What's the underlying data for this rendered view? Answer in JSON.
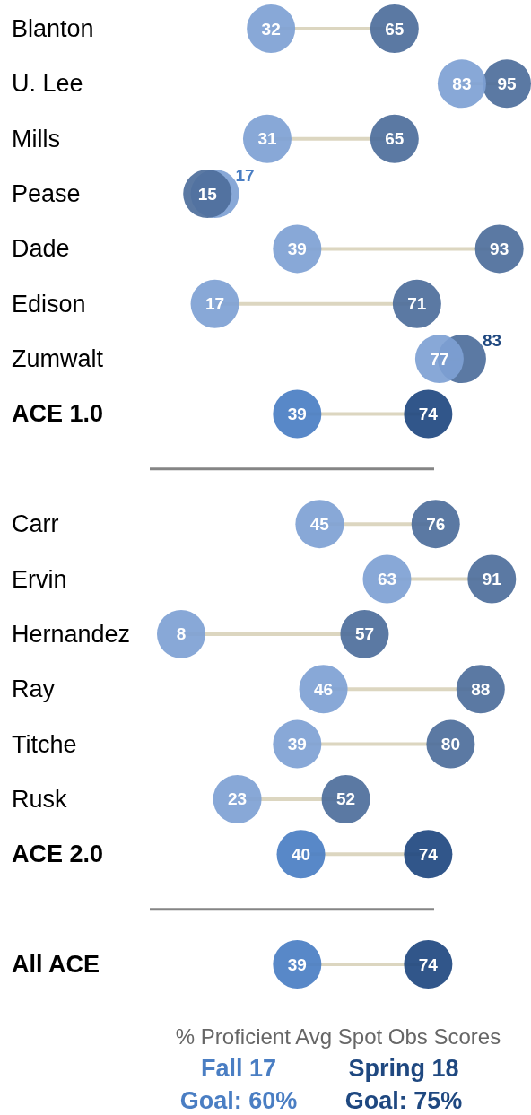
{
  "chart_data": {
    "type": "scatter",
    "orientation": "horizontal",
    "categories": [
      "Blanton",
      "U. Lee",
      "Mills",
      "Pease",
      "Dade",
      "Edison",
      "Zumwalt",
      "ACE 1.0",
      null,
      "Carr",
      "Ervin",
      "Hernandez",
      "Ray",
      "Titche",
      "Rusk",
      "ACE 2.0",
      null,
      "All ACE"
    ],
    "series": [
      {
        "name": "Fall 17",
        "color": "#4a7ec3",
        "values": [
          32,
          83,
          31,
          17,
          39,
          17,
          77,
          39,
          null,
          45,
          63,
          8,
          46,
          39,
          23,
          40,
          null,
          39
        ],
        "colors": [
          "#7ea1d4",
          "#7ea1d4",
          "#7ea1d4",
          "#7ea1d4",
          "#7ea1d4",
          "#7ea1d4",
          "#7ea1d4",
          "#4a7ec3",
          null,
          "#7ea1d4",
          "#7ea1d4",
          "#7ea1d4",
          "#7ea1d4",
          "#7ea1d4",
          "#7ea1d4",
          "#4a7ec3",
          null,
          "#4a7ec3"
        ]
      },
      {
        "name": "Spring 18",
        "color": "#1f4880",
        "values": [
          65,
          95,
          65,
          15,
          93,
          71,
          83,
          74,
          null,
          76,
          91,
          57,
          88,
          80,
          52,
          74,
          null,
          74
        ],
        "colors": [
          "#4d6e9b",
          "#4d6e9b",
          "#4d6e9b",
          "#4d6e9b",
          "#4d6e9b",
          "#4d6e9b",
          "#4d6e9b",
          "#1f4880",
          null,
          "#4d6e9b",
          "#4d6e9b",
          "#4d6e9b",
          "#4d6e9b",
          "#4d6e9b",
          "#4d6e9b",
          "#1f4880",
          null,
          "#1f4880"
        ]
      }
    ],
    "data_labels": true,
    "marker": "circle",
    "legend": "bottom",
    "legend_title": "% Proficient Avg Spot Obs Scores",
    "annotations": [
      "Goal: 60%",
      "Goal: 75%"
    ]
  }
}
